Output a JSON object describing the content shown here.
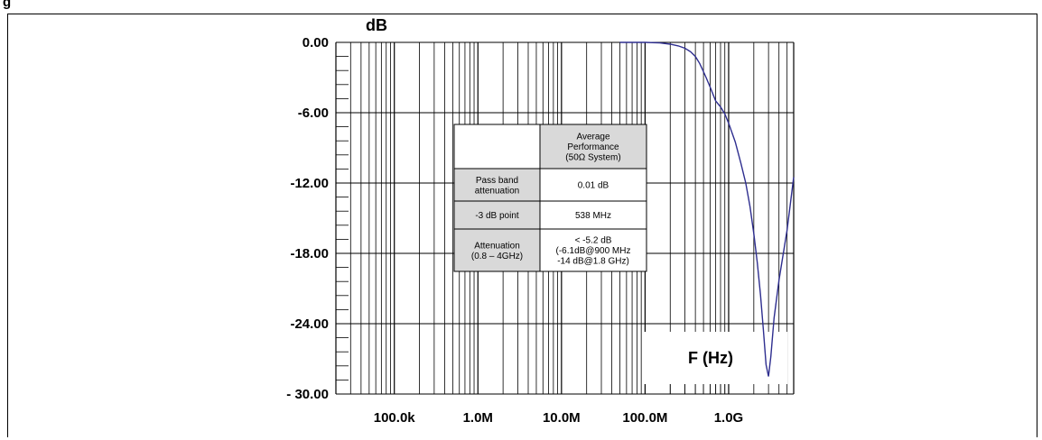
{
  "figure_label": "g",
  "chart_data": {
    "type": "line",
    "ylabel": "dB",
    "xlabel": "F (Hz)",
    "xscale": "log",
    "xlim": [
      20000,
      6000000000
    ],
    "ylim": [
      -30,
      0
    ],
    "yticks": [
      0,
      -6,
      -12,
      -18,
      -24,
      -30
    ],
    "ytick_labels": [
      "0.00",
      "-6.00",
      "-12.00",
      "-18.00",
      "-24.00",
      "- 30.00"
    ],
    "xticks": [
      100000,
      1000000,
      10000000,
      100000000,
      1000000000
    ],
    "xtick_labels": [
      "100.0k",
      "1.0M",
      "10.0M",
      "100.0M",
      "1.0G"
    ],
    "grid": true,
    "series": [
      {
        "color": "#2e2e8f",
        "x": [
          50000000,
          100000000,
          150000000,
          200000000,
          250000000,
          300000000,
          350000000,
          400000000,
          450000000,
          500000000,
          538000000,
          600000000,
          700000000,
          800000000,
          900000000,
          1000000000,
          1200000000,
          1400000000,
          1600000000,
          1800000000,
          2000000000,
          2200000000,
          2400000000,
          2600000000,
          2800000000,
          3000000000,
          3200000000,
          3500000000,
          4000000000,
          5000000000,
          6000000000
        ],
        "y": [
          0,
          0,
          -0.05,
          -0.15,
          -0.3,
          -0.5,
          -0.8,
          -1.2,
          -1.8,
          -2.5,
          -3.0,
          -3.8,
          -5.0,
          -5.5,
          -6.1,
          -6.9,
          -8.5,
          -10.3,
          -12.0,
          -14.0,
          -16.3,
          -18.8,
          -21.5,
          -24.5,
          -27.5,
          -28.5,
          -26.8,
          -23.5,
          -20.3,
          -16.0,
          -11.5
        ]
      }
    ],
    "table": {
      "header": [
        "",
        "Average Performance (50Ω System)"
      ],
      "header_lines": [
        "Average",
        "Performance",
        "(50Ω System)"
      ],
      "rows": [
        {
          "label_lines": [
            "Pass band",
            "attenuation"
          ],
          "value_lines": [
            "0.01 dB"
          ]
        },
        {
          "label_lines": [
            "-3 dB point"
          ],
          "value_lines": [
            "538 MHz"
          ]
        },
        {
          "label_lines": [
            "Attenuation",
            "(0.8 – 4GHz)"
          ],
          "value_lines": [
            "<  -5.2 dB",
            "(-6.1dB@900 MHz",
            "-14 dB@1.8 GHz)"
          ]
        }
      ]
    },
    "colors": {
      "line": "#2e2e8f",
      "grid": "#000000",
      "table_shade": "#d9d9d9"
    }
  }
}
